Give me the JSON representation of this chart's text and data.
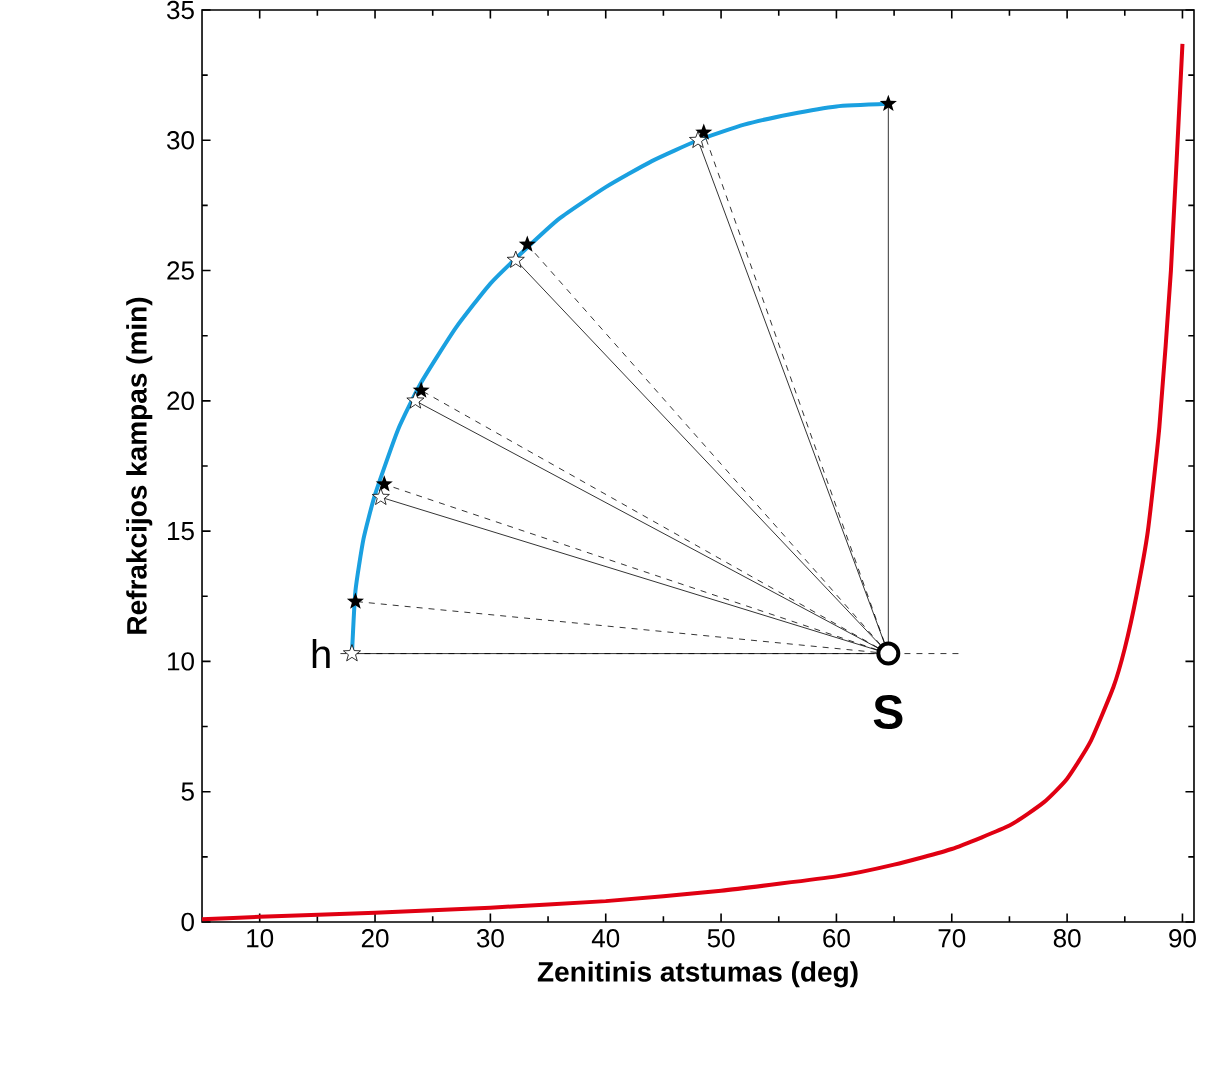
{
  "chart_data": {
    "type": "line",
    "xlabel": "Zenitinis atstumas (deg)",
    "ylabel": "Refrakcijos kampas (min)",
    "x": [
      5,
      10,
      20,
      30,
      40,
      50,
      60,
      65,
      70,
      75,
      78,
      80,
      82,
      84,
      85,
      86,
      87,
      88,
      89,
      90
    ],
    "series": [
      {
        "color": "#e00012",
        "values": [
          0.1,
          0.2,
          0.35,
          0.55,
          0.8,
          1.2,
          1.75,
          2.2,
          2.8,
          3.7,
          4.6,
          5.5,
          6.9,
          9,
          10.5,
          12.5,
          15,
          19,
          25,
          33.7
        ]
      },
      {
        "color": "#1aa0e0",
        "x": [
          18,
          18.3,
          19,
          20,
          22,
          24,
          27,
          30,
          33,
          36,
          40,
          44,
          48,
          52,
          56,
          60,
          64.5
        ],
        "values": [
          10.3,
          12.7,
          14.7,
          16.4,
          18.9,
          20.7,
          22.8,
          24.5,
          25.8,
          27.0,
          28.2,
          29.2,
          30.0,
          30.6,
          31.0,
          31.3,
          31.4
        ]
      }
    ],
    "xlim": [
      5,
      91
    ],
    "ylim": [
      0,
      35
    ],
    "xticks": [
      10,
      20,
      30,
      40,
      50,
      60,
      70,
      80,
      90
    ],
    "yticks": [
      0,
      5,
      10,
      15,
      20,
      25,
      30,
      35
    ],
    "grid": false,
    "marker": "none",
    "line_style": "solid",
    "annotations": [
      "h",
      "S"
    ]
  }
}
